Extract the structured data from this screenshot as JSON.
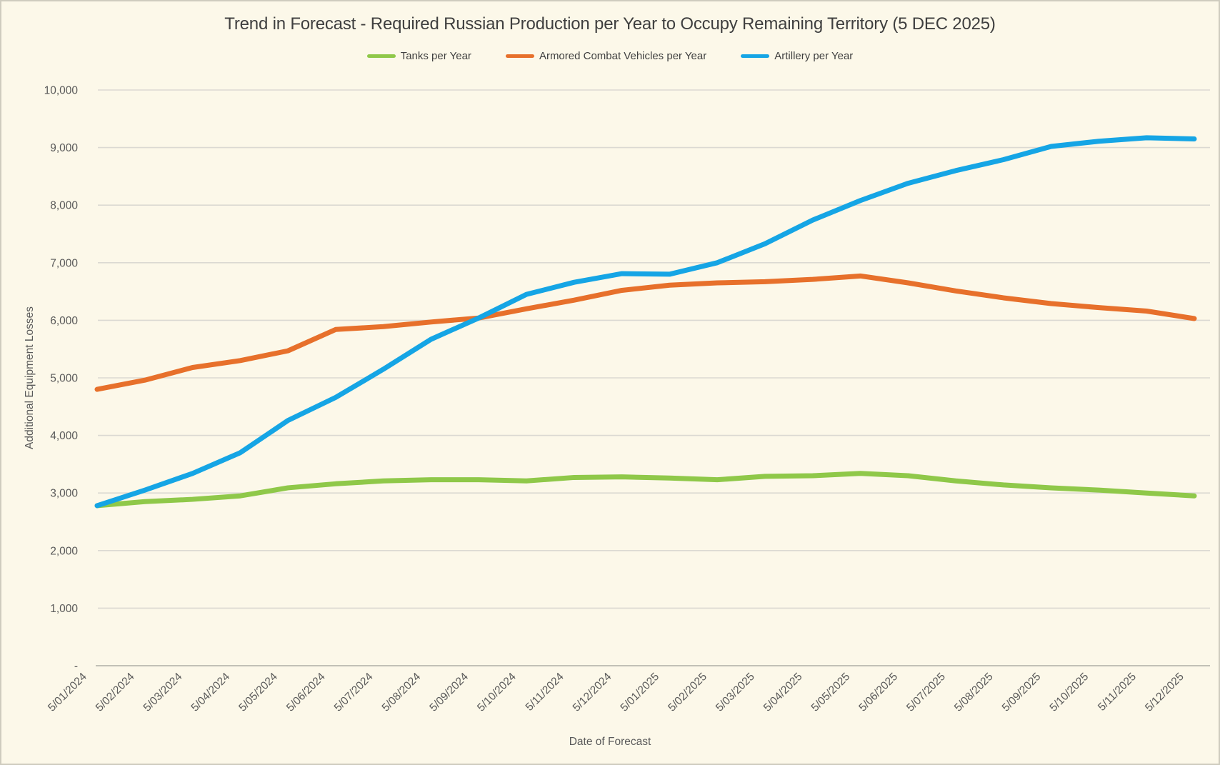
{
  "colors": {
    "background": "#FCF8E9",
    "border": "#CFCCBF",
    "gridline": "#DBD9D2",
    "axis_line": "#C2C0B6",
    "text_primary": "#3F3F3F",
    "text_secondary": "#595959"
  },
  "chart_data": {
    "type": "line",
    "title": "Trend in Forecast - Required Russian Production per Year to Occupy Remaining Territory (5 DEC 2025)",
    "xlabel": "Date of Forecast",
    "ylabel": "Additional Equipment Losses",
    "ylim": [
      0,
      10000
    ],
    "y_tick_step": 1000,
    "y_tick_labels": [
      "-",
      "1,000",
      "2,000",
      "3,000",
      "4,000",
      "5,000",
      "6,000",
      "7,000",
      "8,000",
      "9,000",
      "10,000"
    ],
    "grid": "horizontal",
    "legend_position": "top-center",
    "x_tick_rotation": -45,
    "categories": [
      "5/01/2024",
      "5/02/2024",
      "5/03/2024",
      "5/04/2024",
      "5/05/2024",
      "5/06/2024",
      "5/07/2024",
      "5/08/2024",
      "5/09/2024",
      "5/10/2024",
      "5/11/2024",
      "5/12/2024",
      "5/01/2025",
      "5/02/2025",
      "5/03/2025",
      "5/04/2025",
      "5/05/2025",
      "5/06/2025",
      "5/07/2025",
      "5/08/2025",
      "5/09/2025",
      "5/10/2025",
      "5/11/2025",
      "5/12/2025"
    ],
    "series": [
      {
        "name": "Tanks per Year",
        "color": "#8FC849",
        "values": [
          2780,
          2850,
          2890,
          2950,
          3090,
          3160,
          3210,
          3230,
          3230,
          3210,
          3270,
          3280,
          3260,
          3230,
          3290,
          3300,
          3340,
          3300,
          3210,
          3140,
          3090,
          3050,
          3000,
          2950
        ]
      },
      {
        "name": "Armored Combat Vehicles per Year",
        "color": "#E7702B",
        "values": [
          4800,
          4960,
          5180,
          5300,
          5470,
          5840,
          5890,
          5970,
          6040,
          6200,
          6350,
          6520,
          6610,
          6650,
          6670,
          6710,
          6770,
          6650,
          6510,
          6390,
          6290,
          6220,
          6160,
          6030
        ]
      },
      {
        "name": "Artillery per Year",
        "color": "#15A5E5",
        "values": [
          2780,
          3050,
          3340,
          3700,
          4260,
          4660,
          5150,
          5670,
          6040,
          6450,
          6660,
          6810,
          6800,
          7000,
          7330,
          7740,
          8080,
          8380,
          8600,
          8790,
          9020,
          9110,
          9170,
          9150
        ]
      }
    ]
  }
}
